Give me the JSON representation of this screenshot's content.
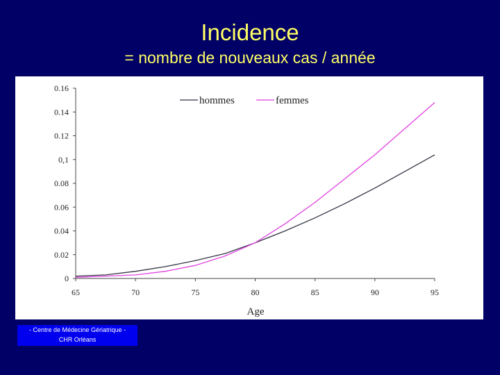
{
  "header": {
    "title": "Incidence",
    "subtitle": "= nombre de nouveaux cas / année"
  },
  "footer": {
    "line1": "- Centre de Médecine Gériatrique -",
    "line2": "CHR   Orléans"
  },
  "colors": {
    "background": "#000066",
    "title": "#ffff66",
    "hommes": "#333344",
    "femmes": "#e040e0",
    "footer_bg": "#0000ee"
  },
  "chart_data": {
    "type": "line",
    "title": "",
    "xlabel": "Age",
    "ylabel": "",
    "xlim": [
      65,
      95
    ],
    "ylim": [
      0,
      0.16
    ],
    "grid": false,
    "legend_position": "top",
    "x_ticks": [
      "65",
      "70",
      "75",
      "80",
      "85",
      "90",
      "95"
    ],
    "y_ticks": [
      "0",
      "0.02",
      "0.04",
      "0.06",
      "0.08",
      "0,1",
      "0.12",
      "0.14",
      "0.16"
    ],
    "x": [
      65,
      67.5,
      70,
      72.5,
      75,
      77.5,
      80,
      82.5,
      85,
      87.5,
      90,
      92.5,
      95
    ],
    "series": [
      {
        "name": "hommes",
        "values": [
          0.002,
          0.003,
          0.006,
          0.01,
          0.015,
          0.021,
          0.03,
          0.04,
          0.051,
          0.063,
          0.076,
          0.09,
          0.104
        ]
      },
      {
        "name": "femmes",
        "values": [
          0.001,
          0.002,
          0.003,
          0.006,
          0.011,
          0.019,
          0.03,
          0.046,
          0.064,
          0.084,
          0.104,
          0.126,
          0.148
        ]
      }
    ]
  }
}
